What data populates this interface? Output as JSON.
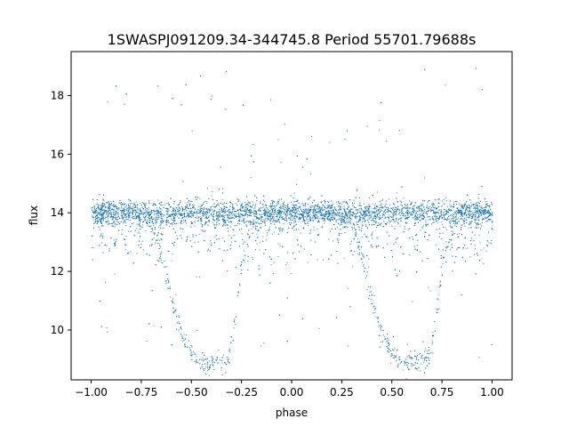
{
  "chart_data": {
    "type": "scatter",
    "title": "1SWASPJ091209.34-344745.8 Period 55701.79688s",
    "xlabel": "phase",
    "ylabel": "flux",
    "xlim": [
      -1.1,
      1.1
    ],
    "ylim": [
      8.3,
      19.5
    ],
    "xticks": [
      -1.0,
      -0.75,
      -0.5,
      -0.25,
      0.0,
      0.25,
      0.5,
      0.75,
      1.0
    ],
    "xtick_labels": [
      "−1.00",
      "−0.75",
      "−0.50",
      "−0.25",
      "0.00",
      "0.25",
      "0.50",
      "0.75",
      "1.00"
    ],
    "yticks": [
      10,
      12,
      14,
      16,
      18
    ],
    "ytick_labels": [
      "10",
      "12",
      "14",
      "16",
      "18"
    ],
    "grid": false,
    "marker_color": "#1f77b4",
    "series": [
      {
        "description_points": "approximate phase-folded light curve envelope sampled points (phase, flux)",
        "x": [
          -1.0,
          -0.95,
          -0.9,
          -0.85,
          -0.8,
          -0.75,
          -0.7,
          -0.65,
          -0.6,
          -0.55,
          -0.5,
          -0.45,
          -0.42,
          -0.4,
          -0.38,
          -0.35,
          -0.32,
          -0.3,
          -0.27,
          -0.25,
          -0.2,
          -0.15,
          -0.1,
          -0.05,
          0.0,
          0.05,
          0.1,
          0.15,
          0.2,
          0.25,
          0.3,
          0.35,
          0.4,
          0.45,
          0.5,
          0.55,
          0.58,
          0.6,
          0.62,
          0.65,
          0.68,
          0.7,
          0.73,
          0.75,
          0.8,
          0.85,
          0.9,
          0.95,
          1.0
        ],
        "y": [
          14.0,
          14.1,
          14.0,
          14.0,
          14.0,
          14.0,
          13.8,
          12.5,
          11.0,
          9.9,
          9.2,
          8.9,
          8.85,
          8.9,
          8.9,
          8.95,
          9.0,
          9.6,
          11.0,
          12.3,
          13.6,
          14.0,
          14.0,
          14.0,
          14.0,
          14.0,
          14.0,
          14.0,
          14.0,
          14.0,
          13.8,
          12.5,
          11.0,
          9.9,
          9.2,
          8.9,
          8.85,
          8.9,
          8.9,
          8.95,
          9.0,
          9.6,
          11.0,
          12.3,
          13.6,
          14.0,
          14.0,
          14.0,
          14.0
        ]
      }
    ]
  }
}
